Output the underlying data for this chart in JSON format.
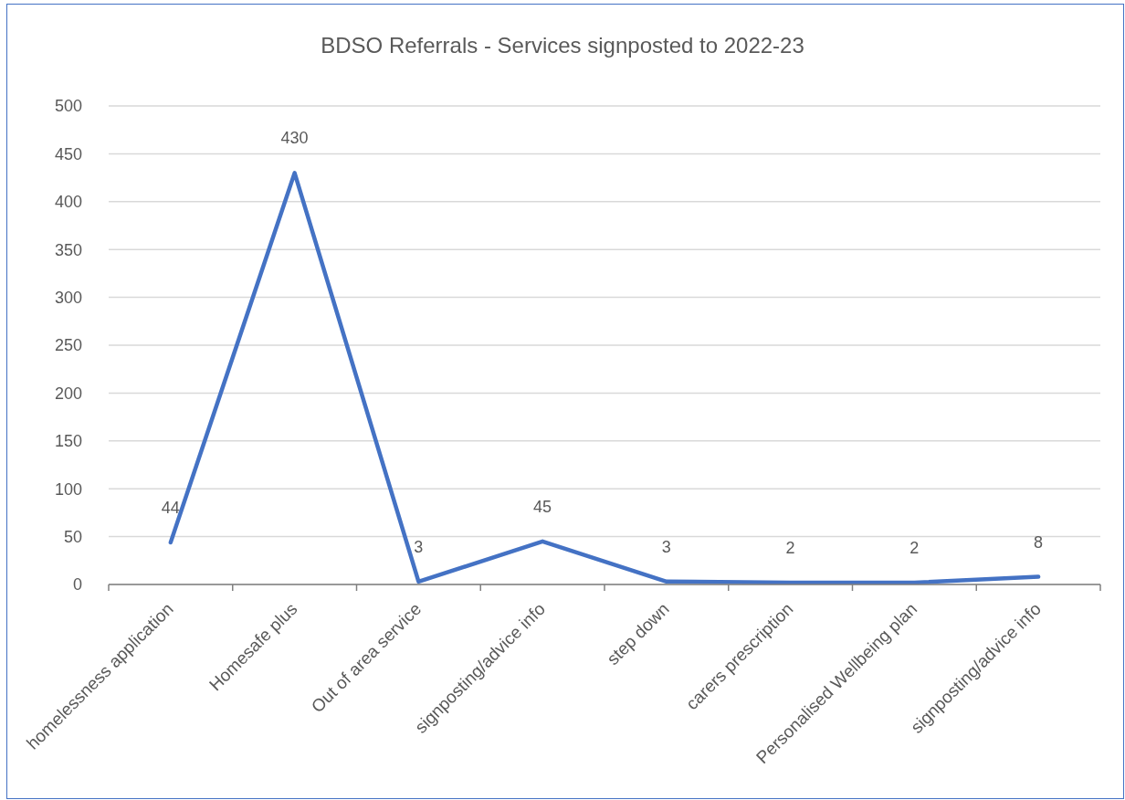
{
  "chart_data": {
    "type": "line",
    "title": "BDSO Referrals - Services signposted to 2022-23",
    "categories": [
      "homelessness application",
      "Homesafe plus",
      "Out of area service",
      "signposting/advice info",
      "step down",
      "carers prescription",
      "Personalised Wellbeing plan",
      "signposting/advice info"
    ],
    "series": [
      {
        "color": "#4472c4",
        "values": [
          44,
          430,
          3,
          45,
          3,
          2,
          2,
          8
        ]
      }
    ],
    "ylim": [
      0,
      500
    ],
    "yticks": [
      0,
      50,
      100,
      150,
      200,
      250,
      300,
      350,
      400,
      450,
      500
    ],
    "grid": "y",
    "data_labels": true,
    "marker": "none",
    "line_style": "solid"
  }
}
